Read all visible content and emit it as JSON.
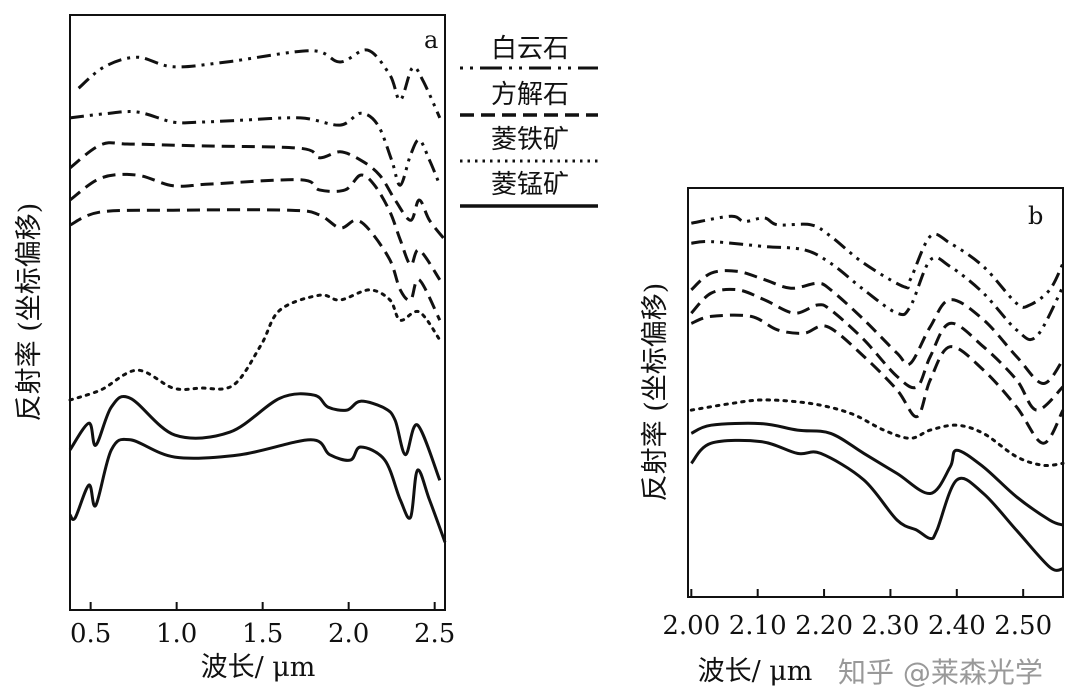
{
  "legend": {
    "items": [
      {
        "label": "白云石",
        "style": "dash-dot-dot"
      },
      {
        "label": "方解石",
        "style": "dashed"
      },
      {
        "label": "菱铁矿",
        "style": "dotted"
      },
      {
        "label": "菱锰矿",
        "style": "solid"
      }
    ]
  },
  "watermark": "知乎 @莱森光学",
  "chart_data": [
    {
      "type": "line",
      "panel_label": "a",
      "xlabel": "波长/ μm",
      "ylabel": "反射率 (坐标偏移)",
      "xlim": [
        0.38,
        2.56
      ],
      "ylim": [
        0,
        100
      ],
      "xticks": [
        0.5,
        1.0,
        1.5,
        2.0,
        2.5
      ],
      "xtick_labels": [
        "0.5",
        "1.0",
        "1.5",
        "2.0",
        "2.5"
      ],
      "yticks_labeled": false,
      "grid": false,
      "legend_position": "right-outside",
      "series": [
        {
          "mineral": "白云石",
          "style": "dash-dot-dot",
          "x": [
            0.43,
            0.58,
            0.77,
            0.98,
            1.29,
            1.78,
            1.95,
            2.11,
            2.24,
            2.3,
            2.37,
            2.43,
            2.53
          ],
          "y": [
            87.7,
            91.3,
            92.9,
            91.3,
            92.1,
            94.0,
            92.1,
            94.1,
            89.9,
            85.7,
            91.1,
            89.1,
            82.7
          ]
        },
        {
          "mineral": "白云石",
          "style": "dash-dot-dot",
          "x": [
            0.38,
            0.58,
            0.77,
            0.98,
            1.14,
            1.37,
            1.72,
            1.95,
            2.07,
            2.17,
            2.25,
            2.3,
            2.36,
            2.41,
            2.47,
            2.53
          ],
          "y": [
            82.7,
            83.4,
            83.7,
            82.0,
            82.0,
            82.3,
            82.7,
            81.5,
            83.5,
            81.5,
            75.6,
            71.4,
            76.5,
            79.0,
            75.6,
            71.4
          ]
        },
        {
          "mineral": "方解石",
          "style": "dashed",
          "x": [
            0.38,
            0.56,
            0.73,
            1.14,
            1.72,
            1.83,
            1.95,
            2.07,
            2.18,
            2.27,
            2.36,
            2.41,
            2.47,
            2.56
          ],
          "y": [
            74.3,
            78.2,
            78.3,
            78.0,
            77.6,
            76.0,
            77.0,
            75.6,
            73.1,
            68.9,
            65.5,
            68.9,
            65.5,
            62.2
          ]
        },
        {
          "mineral": "方解石",
          "style": "dashed",
          "x": [
            0.38,
            0.56,
            0.77,
            0.98,
            1.2,
            1.72,
            1.83,
            1.98,
            2.07,
            2.15,
            2.24,
            2.3,
            2.36,
            2.41,
            2.53
          ],
          "y": [
            68.9,
            72.6,
            73.1,
            71.3,
            71.6,
            72.3,
            70.6,
            70.6,
            73.1,
            71.4,
            66.9,
            62.2,
            58.0,
            60.5,
            55.5
          ]
        },
        {
          "mineral": "方解石",
          "style": "dashed",
          "x": [
            0.38,
            0.56,
            0.98,
            1.66,
            1.83,
            1.95,
            2.04,
            2.12,
            2.24,
            2.3,
            2.36,
            2.41,
            2.53
          ],
          "y": [
            64.7,
            66.9,
            67.2,
            67.2,
            66.4,
            64.2,
            65.5,
            63.9,
            58.8,
            53.8,
            52.1,
            55.5,
            48.7
          ]
        },
        {
          "mineral": "菱铁矿",
          "style": "dotted",
          "x": [
            0.38,
            0.56,
            0.77,
            0.98,
            1.14,
            1.33,
            1.49,
            1.6,
            1.83,
            1.95,
            2.12,
            2.24,
            2.3,
            2.41,
            2.53
          ],
          "y": [
            35.3,
            37.0,
            40.3,
            37.3,
            37.3,
            37.8,
            44.5,
            50.4,
            52.9,
            52.1,
            53.8,
            52.1,
            48.7,
            50.1,
            45.4
          ]
        },
        {
          "mineral": "菱锰矿",
          "style": "solid",
          "x": [
            0.38,
            0.49,
            0.53,
            0.62,
            0.73,
            0.99,
            1.31,
            1.6,
            1.8,
            1.88,
            1.99,
            2.07,
            2.21,
            2.27,
            2.33,
            2.4,
            2.53
          ],
          "y": [
            26.9,
            31.4,
            27.7,
            34.1,
            35.6,
            29.4,
            29.9,
            35.6,
            36.1,
            34.1,
            33.6,
            35.1,
            33.9,
            31.9,
            26.1,
            31.1,
            21.8
          ]
        },
        {
          "mineral": "菱锰矿",
          "style": "solid",
          "x": [
            0.38,
            0.41,
            0.49,
            0.53,
            0.62,
            0.73,
            0.99,
            1.37,
            1.78,
            1.89,
            2.01,
            2.07,
            2.21,
            2.3,
            2.36,
            2.4,
            2.47,
            2.56
          ],
          "y": [
            16.0,
            15.5,
            21.0,
            17.6,
            26.9,
            28.6,
            25.7,
            26.1,
            28.6,
            26.1,
            25.2,
            27.4,
            25.2,
            18.5,
            15.6,
            23.5,
            18.5,
            11.4
          ]
        }
      ]
    },
    {
      "type": "line",
      "panel_label": "b",
      "xlabel": "波长/ μm",
      "ylabel": "反射率 (坐标偏移)",
      "xlim": [
        1.995,
        2.56
      ],
      "ylim": [
        0,
        100
      ],
      "xticks": [
        2.0,
        2.1,
        2.2,
        2.3,
        2.4,
        2.5
      ],
      "xtick_labels": [
        "2.00",
        "2.10",
        "2.20",
        "2.30",
        "2.40",
        "2.50"
      ],
      "yticks_labeled": false,
      "grid": false,
      "series": [
        {
          "mineral": "白云石",
          "style": "dash-dot-dot",
          "x": [
            2.0,
            2.06,
            2.08,
            2.11,
            2.13,
            2.18,
            2.21,
            2.26,
            2.32,
            2.33,
            2.36,
            2.39,
            2.44,
            2.49,
            2.51,
            2.54,
            2.56
          ],
          "y": [
            91.4,
            93.1,
            91.8,
            92.7,
            91.0,
            91.0,
            88.2,
            81.6,
            75.9,
            77.6,
            88.2,
            86.5,
            80.8,
            71.8,
            71.4,
            75.1,
            81.6
          ]
        },
        {
          "mineral": "白云石",
          "style": "dash-dot-dot",
          "x": [
            2.0,
            2.03,
            2.11,
            2.17,
            2.21,
            2.26,
            2.31,
            2.33,
            2.36,
            2.39,
            2.44,
            2.49,
            2.52,
            2.56
          ],
          "y": [
            86.5,
            86.9,
            85.7,
            84.9,
            81.6,
            75.1,
            69.4,
            71.0,
            82.4,
            80.8,
            74.3,
            65.3,
            63.7,
            75.9
          ]
        },
        {
          "mineral": "方解石",
          "style": "dashed",
          "x": [
            2.0,
            2.03,
            2.07,
            2.11,
            2.15,
            2.19,
            2.21,
            2.26,
            2.31,
            2.33,
            2.36,
            2.39,
            2.44,
            2.49,
            2.53,
            2.56
          ],
          "y": [
            75.1,
            79.2,
            79.6,
            77.6,
            75.5,
            76.7,
            75.1,
            67.8,
            59.6,
            57.1,
            66.1,
            72.7,
            67.8,
            58.8,
            52.2,
            58.0
          ]
        },
        {
          "mineral": "方解石",
          "style": "dashed",
          "x": [
            2.0,
            2.03,
            2.07,
            2.11,
            2.155,
            2.19,
            2.21,
            2.26,
            2.31,
            2.34,
            2.36,
            2.39,
            2.44,
            2.49,
            2.52,
            2.56
          ],
          "y": [
            69.4,
            74.3,
            75.1,
            72.7,
            69.4,
            71.4,
            70.2,
            62.9,
            53.9,
            51.4,
            58.8,
            66.9,
            61.2,
            53.1,
            45.7,
            51.4
          ]
        },
        {
          "mineral": "方解石",
          "style": "dashed",
          "x": [
            2.0,
            2.03,
            2.09,
            2.13,
            2.17,
            2.205,
            2.26,
            2.31,
            2.34,
            2.36,
            2.39,
            2.44,
            2.49,
            2.53,
            2.56
          ],
          "y": [
            66.9,
            68.6,
            68.6,
            65.3,
            64.5,
            66.1,
            58.8,
            50.6,
            44.1,
            53.1,
            61.2,
            55.5,
            46.5,
            37.6,
            45.7
          ]
        },
        {
          "mineral": "菱铁矿",
          "style": "dotted",
          "x": [
            2.0,
            2.06,
            2.11,
            2.18,
            2.24,
            2.29,
            2.33,
            2.36,
            2.4,
            2.44,
            2.49,
            2.53,
            2.56
          ],
          "y": [
            45.7,
            47.3,
            48.2,
            47.3,
            44.9,
            40.8,
            38.8,
            40.8,
            42.0,
            40.0,
            34.3,
            32.2,
            32.7
          ]
        },
        {
          "mineral": "菱锰矿",
          "style": "solid",
          "x": [
            2.0,
            2.03,
            2.105,
            2.16,
            2.21,
            2.26,
            2.31,
            2.36,
            2.39,
            2.4,
            2.44,
            2.49,
            2.54,
            2.56
          ],
          "y": [
            40.0,
            42.0,
            42.4,
            40.8,
            40.0,
            35.1,
            30.2,
            25.3,
            31.8,
            35.9,
            31.8,
            24.5,
            18.8,
            17.6
          ]
        },
        {
          "mineral": "菱锰矿",
          "style": "solid",
          "x": [
            2.0,
            2.03,
            2.105,
            2.16,
            2.195,
            2.26,
            2.31,
            2.34,
            2.36,
            2.37,
            2.4,
            2.44,
            2.49,
            2.54,
            2.56
          ],
          "y": [
            32.7,
            37.6,
            38.0,
            35.1,
            35.1,
            28.6,
            18.8,
            16.3,
            14.3,
            16.3,
            28.6,
            25.3,
            16.3,
            7.3,
            6.9
          ]
        }
      ]
    }
  ]
}
